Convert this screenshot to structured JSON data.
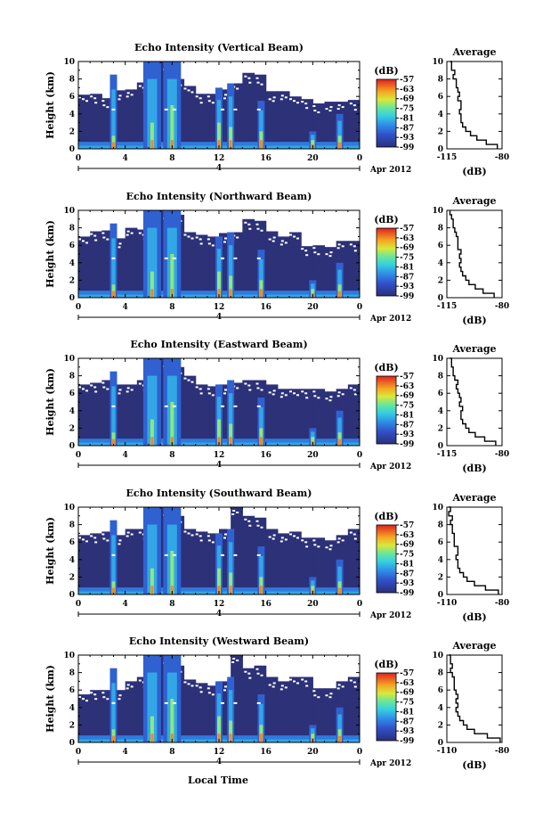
{
  "figure": {
    "xlabel": "Local Time",
    "date_label": "Apr 2012",
    "day_marker": "4"
  },
  "chart_data": [
    {
      "type": "heatmap",
      "title": "Echo Intensity (Vertical Beam)",
      "ylabel": "Height (km)",
      "xlim": [
        0,
        24
      ],
      "ylim": [
        0,
        10
      ],
      "x_ticks": [
        "0",
        "4",
        "8",
        "12",
        "16",
        "20",
        "0"
      ],
      "y_ticks": [
        "0",
        "2",
        "4",
        "6",
        "8",
        "10"
      ],
      "colorbar": {
        "unit": "(dB)",
        "ticks": [
          "-57",
          "-63",
          "-69",
          "-75",
          "-81",
          "-87",
          "-93",
          "-99"
        ],
        "range": [
          -99,
          -57
        ]
      },
      "profile": {
        "title": "Average",
        "xlabel": "(dB)",
        "x_ticks": [
          "-115",
          "-80"
        ],
        "xlim": [
          -115,
          -80
        ],
        "y_ticks": [
          "0",
          "2",
          "4",
          "6",
          "8",
          "10"
        ],
        "height": [
          0.0,
          0.5,
          1.0,
          1.5,
          2.0,
          2.5,
          3.0,
          3.5,
          4.0,
          4.5,
          5.0,
          5.5,
          6.0,
          6.5,
          7.0,
          7.5,
          8.0,
          8.5,
          9.0,
          9.5,
          10.0
        ],
        "value": [
          -83,
          -90,
          -96,
          -100,
          -103,
          -105,
          -106,
          -106,
          -107,
          -106,
          -106,
          -108,
          -107,
          -108,
          -109,
          -109,
          -111,
          -110,
          -112,
          -112,
          -113
        ]
      },
      "cloud_top_km": [
        6.2,
        6.3,
        5.8,
        6.7,
        6.8,
        7.6,
        7.5,
        10.0,
        8.0,
        7.2,
        6.3,
        6.3,
        6.8,
        7.5,
        8.7,
        8.5,
        6.6,
        6.6,
        6.0,
        5.7,
        5.2,
        5.4,
        5.4,
        5.6
      ],
      "convective_cells": [
        {
          "time": 3.0,
          "top_km": 8.5,
          "core_km": 1.5
        },
        {
          "time": 6.3,
          "top_km": 10.0,
          "core_km": 3.0
        },
        {
          "time": 8.0,
          "top_km": 10.0,
          "core_km": 5.0
        },
        {
          "time": 12.0,
          "top_km": 7.0,
          "core_km": 3.0
        },
        {
          "time": 13.0,
          "top_km": 7.5,
          "core_km": 2.5
        },
        {
          "time": 15.6,
          "top_km": 5.5,
          "core_km": 2.0
        },
        {
          "time": 20.0,
          "top_km": 2.0,
          "core_km": 1.0
        },
        {
          "time": 22.3,
          "top_km": 4.0,
          "core_km": 1.5
        }
      ]
    },
    {
      "type": "heatmap",
      "title": "Echo Intensity (Northward Beam)",
      "ylabel": "Height (km)",
      "xlim": [
        0,
        24
      ],
      "ylim": [
        0,
        10
      ],
      "x_ticks": [
        "0",
        "4",
        "8",
        "12",
        "16",
        "20",
        "0"
      ],
      "y_ticks": [
        "0",
        "2",
        "4",
        "6",
        "8",
        "10"
      ],
      "colorbar": {
        "unit": "(dB)",
        "ticks": [
          "-57",
          "-63",
          "-69",
          "-75",
          "-81",
          "-87",
          "-93",
          "-99"
        ],
        "range": [
          -99,
          -57
        ]
      },
      "profile": {
        "title": "Average",
        "xlabel": "(dB)",
        "x_ticks": [
          "-115",
          "-80"
        ],
        "xlim": [
          -115,
          -80
        ],
        "y_ticks": [
          "0",
          "2",
          "4",
          "6",
          "8",
          "10"
        ],
        "height": [
          0.0,
          0.5,
          1.0,
          1.5,
          2.0,
          2.5,
          3.0,
          3.5,
          4.0,
          4.5,
          5.0,
          5.5,
          6.0,
          6.5,
          7.0,
          7.5,
          8.0,
          8.5,
          9.0,
          9.5,
          10.0
        ],
        "value": [
          -85,
          -92,
          -97,
          -101,
          -103,
          -105,
          -106,
          -107,
          -106,
          -107,
          -106,
          -108,
          -108,
          -108,
          -109,
          -110,
          -111,
          -111,
          -112,
          -113,
          -113
        ]
      },
      "cloud_top_km": [
        7.0,
        7.6,
        7.7,
        6.8,
        8.0,
        7.8,
        8.4,
        10.0,
        9.5,
        7.5,
        7.2,
        7.0,
        7.4,
        7.5,
        9.0,
        8.8,
        7.6,
        7.0,
        7.5,
        5.9,
        6.0,
        5.8,
        6.5,
        6.5
      ],
      "convective_cells": [
        {
          "time": 3.0,
          "top_km": 8.5,
          "core_km": 1.5
        },
        {
          "time": 6.3,
          "top_km": 10.0,
          "core_km": 3.0
        },
        {
          "time": 8.0,
          "top_km": 10.0,
          "core_km": 5.0
        },
        {
          "time": 12.0,
          "top_km": 7.0,
          "core_km": 3.0
        },
        {
          "time": 13.0,
          "top_km": 7.5,
          "core_km": 2.5
        },
        {
          "time": 15.6,
          "top_km": 5.5,
          "core_km": 2.0
        },
        {
          "time": 20.0,
          "top_km": 2.0,
          "core_km": 1.0
        },
        {
          "time": 22.3,
          "top_km": 4.0,
          "core_km": 1.5
        }
      ]
    },
    {
      "type": "heatmap",
      "title": "Echo Intensity (Eastward Beam)",
      "ylabel": "Height (km)",
      "xlim": [
        0,
        24
      ],
      "ylim": [
        0,
        10
      ],
      "x_ticks": [
        "0",
        "4",
        "8",
        "12",
        "16",
        "20",
        "0"
      ],
      "y_ticks": [
        "0",
        "2",
        "4",
        "6",
        "8",
        "10"
      ],
      "colorbar": {
        "unit": "(dB)",
        "ticks": [
          "-57",
          "-63",
          "-69",
          "-75",
          "-81",
          "-87",
          "-93",
          "-99"
        ],
        "range": [
          -99,
          -57
        ]
      },
      "profile": {
        "title": "Average",
        "xlabel": "(dB)",
        "x_ticks": [
          "-115",
          "-80"
        ],
        "xlim": [
          -115,
          -80
        ],
        "y_ticks": [
          "0",
          "2",
          "4",
          "6",
          "8",
          "10"
        ],
        "height": [
          0.0,
          0.5,
          1.0,
          1.5,
          2.0,
          2.5,
          3.0,
          3.5,
          4.0,
          4.5,
          5.0,
          5.5,
          6.0,
          6.5,
          7.0,
          7.5,
          8.0,
          8.5,
          9.0,
          9.5,
          10.0
        ],
        "value": [
          -84,
          -91,
          -97,
          -101,
          -103,
          -105,
          -106,
          -106,
          -105,
          -107,
          -106,
          -107,
          -108,
          -109,
          -108,
          -110,
          -111,
          -111,
          -112,
          -112,
          -113
        ]
      },
      "cloud_top_km": [
        7.0,
        7.2,
        7.5,
        7.0,
        7.0,
        7.5,
        9.0,
        10.0,
        9.0,
        8.0,
        7.0,
        6.8,
        7.0,
        7.2,
        7.5,
        7.5,
        7.0,
        6.5,
        6.5,
        6.5,
        6.5,
        6.2,
        6.5,
        7.0
      ],
      "convective_cells": [
        {
          "time": 3.0,
          "top_km": 8.5,
          "core_km": 1.5
        },
        {
          "time": 6.3,
          "top_km": 10.0,
          "core_km": 3.0
        },
        {
          "time": 8.0,
          "top_km": 10.0,
          "core_km": 5.0
        },
        {
          "time": 12.0,
          "top_km": 7.0,
          "core_km": 3.0
        },
        {
          "time": 13.0,
          "top_km": 7.5,
          "core_km": 2.5
        },
        {
          "time": 15.6,
          "top_km": 5.5,
          "core_km": 2.0
        },
        {
          "time": 20.0,
          "top_km": 2.0,
          "core_km": 1.0
        },
        {
          "time": 22.3,
          "top_km": 4.0,
          "core_km": 1.5
        }
      ]
    },
    {
      "type": "heatmap",
      "title": "Echo Intensity (Southward Beam)",
      "ylabel": "Height (km)",
      "xlim": [
        0,
        24
      ],
      "ylim": [
        0,
        10
      ],
      "x_ticks": [
        "0",
        "4",
        "8",
        "12",
        "16",
        "20",
        "0"
      ],
      "y_ticks": [
        "0",
        "2",
        "4",
        "6",
        "8",
        "10"
      ],
      "colorbar": {
        "unit": "(dB)",
        "ticks": [
          "-57",
          "-63",
          "-69",
          "-75",
          "-81",
          "-87",
          "-93",
          "-99"
        ],
        "range": [
          -99,
          -57
        ]
      },
      "profile": {
        "title": "Average",
        "xlabel": "(dB)",
        "x_ticks": [
          "-110",
          "-80"
        ],
        "xlim": [
          -110,
          -80
        ],
        "y_ticks": [
          "0",
          "2",
          "4",
          "6",
          "8",
          "10"
        ],
        "height": [
          0.0,
          0.5,
          1.0,
          1.5,
          2.0,
          2.5,
          3.0,
          3.5,
          4.0,
          4.5,
          5.0,
          5.5,
          6.0,
          6.5,
          7.0,
          7.5,
          8.0,
          8.5,
          9.0,
          9.5,
          10.0
        ],
        "value": [
          -82,
          -89,
          -95,
          -99,
          -101,
          -103,
          -104,
          -104,
          -105,
          -104,
          -104,
          -106,
          -106,
          -106,
          -107,
          -107,
          -108,
          -107,
          -109,
          -108,
          -109
        ]
      },
      "cloud_top_km": [
        6.8,
        7.0,
        7.2,
        6.8,
        7.5,
        7.5,
        8.5,
        10.0,
        9.0,
        7.5,
        7.2,
        7.0,
        7.5,
        10.0,
        9.0,
        8.8,
        7.5,
        7.0,
        7.2,
        6.5,
        6.5,
        6.2,
        6.8,
        7.5
      ],
      "convective_cells": [
        {
          "time": 3.0,
          "top_km": 8.5,
          "core_km": 1.5
        },
        {
          "time": 6.3,
          "top_km": 10.0,
          "core_km": 3.0
        },
        {
          "time": 8.0,
          "top_km": 10.0,
          "core_km": 5.0
        },
        {
          "time": 12.0,
          "top_km": 7.0,
          "core_km": 3.0
        },
        {
          "time": 13.0,
          "top_km": 7.5,
          "core_km": 2.5
        },
        {
          "time": 15.6,
          "top_km": 5.5,
          "core_km": 2.0
        },
        {
          "time": 20.0,
          "top_km": 2.0,
          "core_km": 1.0
        },
        {
          "time": 22.3,
          "top_km": 4.0,
          "core_km": 1.5
        }
      ]
    },
    {
      "type": "heatmap",
      "title": "Echo Intensity (Westward Beam)",
      "ylabel": "Height (km)",
      "xlim": [
        0,
        24
      ],
      "ylim": [
        0,
        10
      ],
      "x_ticks": [
        "0",
        "4",
        "8",
        "12",
        "16",
        "20",
        "0"
      ],
      "y_ticks": [
        "0",
        "2",
        "4",
        "6",
        "8",
        "10"
      ],
      "colorbar": {
        "unit": "(dB)",
        "ticks": [
          "-57",
          "-63",
          "-69",
          "-75",
          "-81",
          "-87",
          "-93",
          "-99"
        ],
        "range": [
          -99,
          -57
        ]
      },
      "profile": {
        "title": "Average",
        "xlabel": "(dB)",
        "x_ticks": [
          "-110",
          "-80"
        ],
        "xlim": [
          -110,
          -80
        ],
        "y_ticks": [
          "0",
          "2",
          "4",
          "6",
          "8",
          "10"
        ],
        "height": [
          0.0,
          0.5,
          1.0,
          1.5,
          2.0,
          2.5,
          3.0,
          3.5,
          4.0,
          4.5,
          5.0,
          5.5,
          6.0,
          6.5,
          7.0,
          7.5,
          8.0,
          8.5,
          9.0,
          9.5,
          10.0
        ],
        "value": [
          -81,
          -88,
          -95,
          -99,
          -101,
          -103,
          -104,
          -105,
          -104,
          -105,
          -104,
          -105,
          -106,
          -106,
          -106,
          -107,
          -108,
          -107,
          -108,
          -108,
          -109
        ]
      },
      "cloud_top_km": [
        5.5,
        6.0,
        6.0,
        6.0,
        7.0,
        7.5,
        7.8,
        10.0,
        8.8,
        7.2,
        6.8,
        6.5,
        7.0,
        10.0,
        8.5,
        8.8,
        7.5,
        7.0,
        7.5,
        7.5,
        6.2,
        6.2,
        7.0,
        7.5
      ],
      "convective_cells": [
        {
          "time": 3.0,
          "top_km": 8.5,
          "core_km": 1.5
        },
        {
          "time": 6.3,
          "top_km": 10.0,
          "core_km": 3.0
        },
        {
          "time": 8.0,
          "top_km": 10.0,
          "core_km": 5.0
        },
        {
          "time": 12.0,
          "top_km": 7.0,
          "core_km": 3.0
        },
        {
          "time": 13.0,
          "top_km": 7.5,
          "core_km": 2.5
        },
        {
          "time": 15.6,
          "top_km": 5.5,
          "core_km": 2.0
        },
        {
          "time": 20.0,
          "top_km": 2.0,
          "core_km": 1.0
        },
        {
          "time": 22.3,
          "top_km": 4.0,
          "core_km": 1.5
        }
      ]
    }
  ]
}
